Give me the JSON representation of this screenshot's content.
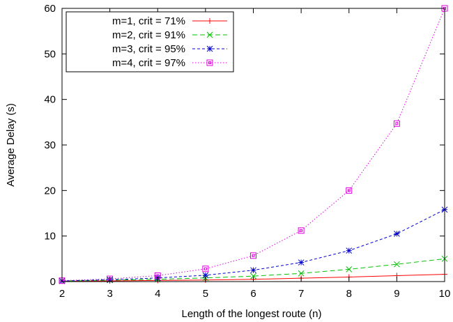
{
  "chart_data": {
    "type": "line",
    "xlabel": "Length of the longest route (n)",
    "ylabel": "Average Delay (s)",
    "xlim": [
      2,
      10
    ],
    "ylim": [
      0,
      60
    ],
    "x_ticks": [
      "2",
      "3",
      "4",
      "5",
      "6",
      "7",
      "8",
      "9",
      "10"
    ],
    "y_ticks": [
      "0",
      "10",
      "20",
      "30",
      "40",
      "50",
      "60"
    ],
    "legend_position": "top-left",
    "grid": false,
    "x": [
      2,
      3,
      4,
      5,
      6,
      7,
      8,
      9,
      10
    ],
    "series": [
      {
        "name": "m=1, crit = 71%",
        "color": "#ff0000",
        "marker": "plus",
        "line": "solid",
        "values": [
          0.1,
          0.15,
          0.25,
          0.35,
          0.5,
          0.75,
          1.0,
          1.3,
          1.6
        ]
      },
      {
        "name": "m=2, crit = 91%",
        "color": "#00c000",
        "marker": "cross",
        "line": "dashed",
        "values": [
          0.1,
          0.3,
          0.5,
          0.8,
          1.2,
          1.8,
          2.7,
          3.8,
          5.0
        ]
      },
      {
        "name": "m=3, crit = 95%",
        "color": "#0000cc",
        "marker": "star",
        "line": "dashed-short",
        "values": [
          0.15,
          0.4,
          0.8,
          1.4,
          2.5,
          4.2,
          6.8,
          10.5,
          15.8
        ]
      },
      {
        "name": "m=4, crit = 97%",
        "color": "#e000e0",
        "marker": "square",
        "line": "dotted",
        "values": [
          0.2,
          0.6,
          1.3,
          2.8,
          5.7,
          11.2,
          20.0,
          34.7,
          60.0
        ]
      }
    ]
  }
}
